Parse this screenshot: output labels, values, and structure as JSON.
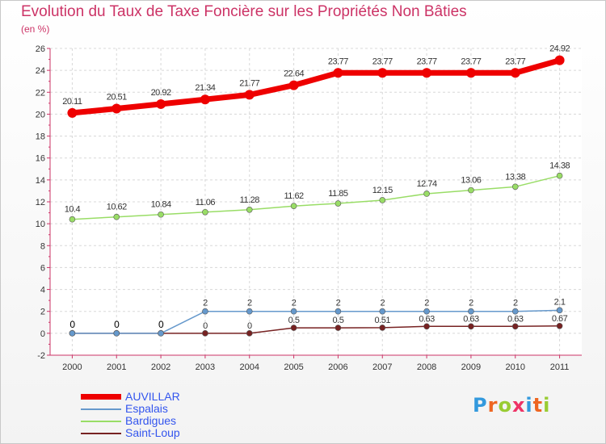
{
  "title": "Evolution du Taux de Taxe Foncière sur les Propriétés Non Bâties",
  "subtitle": "(en %)",
  "logo": "Proxiti",
  "chart_data": {
    "type": "line",
    "title": "Evolution du Taux de Taxe Foncière sur les Propriétés Non Bâties",
    "ylabel": "(en %)",
    "xlabel": "",
    "x": [
      2000,
      2001,
      2002,
      2003,
      2004,
      2005,
      2006,
      2007,
      2008,
      2009,
      2010,
      2011
    ],
    "ylim": [
      -2,
      26
    ],
    "yticks": [
      -2,
      0,
      2,
      4,
      6,
      8,
      10,
      12,
      14,
      16,
      18,
      20,
      22,
      24,
      26
    ],
    "grid": true,
    "legend_position": "bottom-left",
    "series": [
      {
        "name": "AUVILLAR",
        "color": "#ee0000",
        "values": [
          20.11,
          20.51,
          20.92,
          21.34,
          21.77,
          22.64,
          23.77,
          23.77,
          23.77,
          23.77,
          23.77,
          24.92
        ],
        "labels": [
          "20.11",
          "20.51",
          "20.92",
          "21.34",
          "21.77",
          "22.64",
          "23.77",
          "23.77",
          "23.77",
          "23.77",
          "23.77",
          "24.92"
        ]
      },
      {
        "name": "Espalais",
        "color": "#6699cc",
        "values": [
          0,
          0,
          0,
          2,
          2,
          2,
          2,
          2,
          2,
          2,
          2,
          2.1
        ],
        "labels": [
          "0",
          "0",
          "0",
          "2",
          "2",
          "2",
          "2",
          "2",
          "2",
          "2",
          "2",
          "2.1"
        ]
      },
      {
        "name": "Bardigues",
        "color": "#99dd66",
        "values": [
          10.4,
          10.62,
          10.84,
          11.06,
          11.28,
          11.62,
          11.85,
          12.15,
          12.74,
          13.06,
          13.38,
          14.38
        ],
        "labels": [
          "10.4",
          "10.62",
          "10.84",
          "11.06",
          "11.28",
          "11.62",
          "11.85",
          "12.15",
          "12.74",
          "13.06",
          "13.38",
          "14.38"
        ]
      },
      {
        "name": "Saint-Loup",
        "color": "#772222",
        "values": [
          0,
          0,
          0,
          0,
          0,
          0.5,
          0.5,
          0.51,
          0.63,
          0.63,
          0.63,
          0.67
        ],
        "labels": [
          "",
          "",
          "",
          "0",
          "0",
          "0.5",
          "0.5",
          "0.51",
          "0.63",
          "0.63",
          "0.63",
          "0.67"
        ]
      }
    ]
  }
}
